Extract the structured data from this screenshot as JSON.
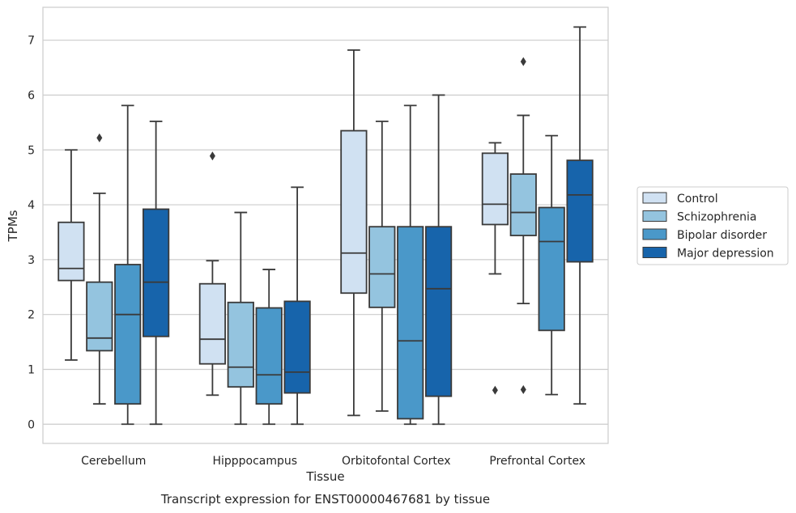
{
  "chart_data": {
    "type": "box",
    "caption": "Transcript expression for ENST00000467681 by tissue",
    "xlabel": "Tissue",
    "ylabel": "TPMs",
    "ylim": [
      -0.35,
      7.6
    ],
    "yticks": [
      0,
      1,
      2,
      3,
      4,
      5,
      6,
      7
    ],
    "grid": "horizontal",
    "legend_position": "right",
    "categories": [
      "Cerebellum",
      "Hipppocampus",
      "Orbitofontal Cortex",
      "Prefrontal Cortex"
    ],
    "series": [
      {
        "name": "Control",
        "color": "#d0e1f2",
        "boxes": [
          {
            "whislo": 1.17,
            "q1": 2.62,
            "med": 2.84,
            "q3": 3.68,
            "whishi": 5.0,
            "fliers": []
          },
          {
            "whislo": 0.53,
            "q1": 1.1,
            "med": 1.55,
            "q3": 2.56,
            "whishi": 2.98,
            "fliers": [
              4.89
            ]
          },
          {
            "whislo": 0.16,
            "q1": 2.39,
            "med": 3.12,
            "q3": 5.35,
            "whishi": 6.82,
            "fliers": []
          },
          {
            "whislo": 2.74,
            "q1": 3.64,
            "med": 4.01,
            "q3": 4.94,
            "whishi": 5.13,
            "fliers": [
              0.62
            ]
          }
        ]
      },
      {
        "name": "Schizophrenia",
        "color": "#94c4df",
        "boxes": [
          {
            "whislo": 0.37,
            "q1": 1.34,
            "med": 1.57,
            "q3": 2.59,
            "whishi": 4.21,
            "fliers": [
              5.22
            ]
          },
          {
            "whislo": 0.0,
            "q1": 0.68,
            "med": 1.04,
            "q3": 2.22,
            "whishi": 3.86,
            "fliers": []
          },
          {
            "whislo": 0.24,
            "q1": 2.13,
            "med": 2.74,
            "q3": 3.6,
            "whishi": 5.52,
            "fliers": []
          },
          {
            "whislo": 2.2,
            "q1": 3.44,
            "med": 3.86,
            "q3": 4.56,
            "whishi": 5.63,
            "fliers": [
              0.63,
              6.61
            ]
          }
        ]
      },
      {
        "name": "Bipolar disorder",
        "color": "#4a98c9",
        "boxes": [
          {
            "whislo": 0.0,
            "q1": 0.37,
            "med": 2.0,
            "q3": 2.91,
            "whishi": 5.81,
            "fliers": []
          },
          {
            "whislo": 0.0,
            "q1": 0.37,
            "med": 0.9,
            "q3": 2.12,
            "whishi": 2.82,
            "fliers": []
          },
          {
            "whislo": 0.0,
            "q1": 0.1,
            "med": 1.52,
            "q3": 3.6,
            "whishi": 5.81,
            "fliers": []
          },
          {
            "whislo": 0.54,
            "q1": 1.71,
            "med": 3.33,
            "q3": 3.95,
            "whishi": 5.26,
            "fliers": []
          }
        ]
      },
      {
        "name": "Major depression",
        "color": "#1764ab",
        "boxes": [
          {
            "whislo": 0.0,
            "q1": 1.6,
            "med": 2.59,
            "q3": 3.92,
            "whishi": 5.52,
            "fliers": []
          },
          {
            "whislo": 0.0,
            "q1": 0.57,
            "med": 0.95,
            "q3": 2.24,
            "whishi": 4.32,
            "fliers": []
          },
          {
            "whislo": 0.0,
            "q1": 0.51,
            "med": 2.47,
            "q3": 3.6,
            "whishi": 6.0,
            "fliers": []
          },
          {
            "whislo": 0.37,
            "q1": 2.96,
            "med": 4.18,
            "q3": 4.81,
            "whishi": 7.24,
            "fliers": []
          }
        ]
      }
    ]
  }
}
